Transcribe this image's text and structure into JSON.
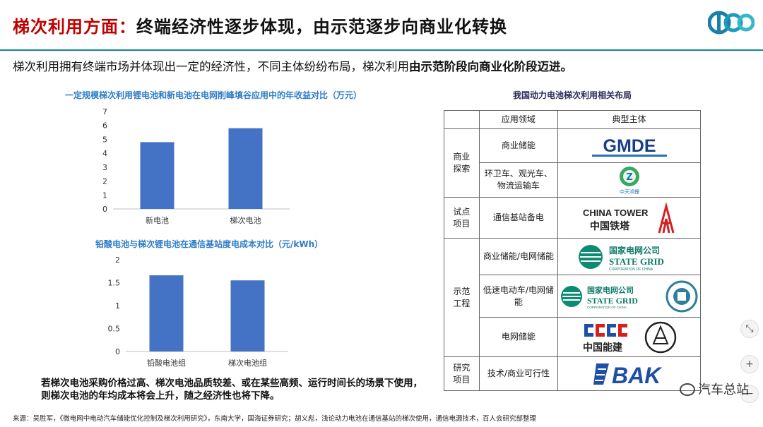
{
  "header": {
    "title_highlight": "梯次利用方面：",
    "title_rest": "终端经济性逐步体现，由示范逐步向商业化转换",
    "lead_normal": "梯次利用拥有终端市场并体现出一定的经济性，不同主体纷纷布局，梯次利用",
    "lead_bold": "由示范阶段向商业化阶段迈进。"
  },
  "chart_data": [
    {
      "type": "bar",
      "title": "一定规模梯次利用锂电池和新电池在电网削峰填谷应用中的年收益对比（万元）",
      "categories": [
        "新电池",
        "梯次电池"
      ],
      "values": [
        4.8,
        5.8
      ],
      "ylim": [
        0,
        7
      ],
      "yticks": [
        "0",
        "1",
        "2",
        "3",
        "4",
        "5",
        "6",
        "7"
      ],
      "color": "#4472c4"
    },
    {
      "type": "bar",
      "title": "铅酸电池与梯次锂电池在通信基站度电成本对比（元/kWh）",
      "categories": [
        "铅酸电池组",
        "梯次电池组"
      ],
      "values": [
        1.66,
        1.55
      ],
      "ylim": [
        0,
        2
      ],
      "yticks": [
        "0",
        "0.5",
        "1",
        "1.5",
        "2"
      ],
      "color": "#4472c4"
    }
  ],
  "conclusion": "若梯次电池采购价格过高、梯次电池品质较差、或在某些高频、运行时间长的场景下使用，则梯次电池的年均成本将会上升，随之经济性也将下降。",
  "source": "来源：吴胜军，《微电网中电动汽车储能优化控制及梯次利用研究》，东南大学，国海证券研究；胡义彪，浅论动力电池在通信基站的梯次使用，通信电源技术，百人会研究部整理",
  "table": {
    "title": "我国动力电池梯次利用相关布局",
    "headers": [
      "",
      "应用领域",
      "典型主体"
    ],
    "groups": {
      "commercial": "商业探索",
      "pilot": "试点项目",
      "demo": "示范工程",
      "research": "研究项目"
    },
    "rows": {
      "r1": "商业储能",
      "r2": "环卫车、观光车、物流运输车",
      "r3": "通信基站备电",
      "r4": "商业储能/电网储能",
      "r5": "低速电动车/电网储能",
      "r6": "电网储能",
      "r7": "技术/商业可行性"
    },
    "logos": {
      "gmde": "GMDE",
      "zhongtian_small": "中天鸿锂",
      "china_tower_en": "CHINA TOWER",
      "china_tower_cn": "中国铁塔",
      "state_grid_cn": "国家电网公司",
      "state_grid_en": "STATE GRID",
      "state_grid_sub": "CORPORATION OF CHINA",
      "ceec_cn": "中国能建",
      "bak": "BAK"
    }
  },
  "watermark": "汽车总站",
  "side_controls": [
    "⤡",
    "+",
    "−"
  ],
  "colors": {
    "accent_red": "#c00000",
    "rule_teal": "#13859a",
    "chart_blue": "#2e7cc8",
    "bar": "#4472c4"
  }
}
